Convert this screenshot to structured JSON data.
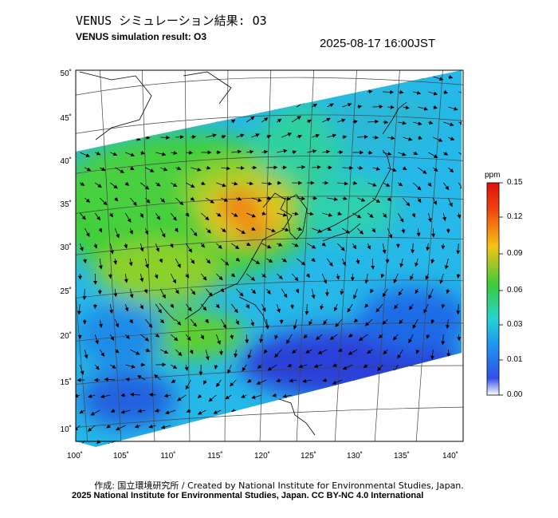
{
  "header": {
    "title_jp": "VENUS シミュレーション結果: O3",
    "title_en": "VENUS simulation result: O3",
    "timestamp": "2025-08-17 16:00JST"
  },
  "map": {
    "lat_labels": [
      "50˚",
      "45˚",
      "40˚",
      "35˚",
      "30˚",
      "25˚",
      "20˚",
      "15˚",
      "10˚"
    ],
    "lon_labels": [
      "100˚",
      "105˚",
      "110˚",
      "115˚",
      "120˚",
      "125˚",
      "130˚",
      "135˚",
      "140˚"
    ],
    "features": [
      "coastline",
      "graticule",
      "wind-vectors",
      "o3-concentration-field"
    ]
  },
  "colorbar": {
    "unit": "ppm",
    "ticks": [
      "0.15",
      "0.12",
      "0.09",
      "0.06",
      "0.03",
      "0.01",
      "0.00"
    ],
    "colors": [
      "#ffffff",
      "#2f3fe0",
      "#1e9cf0",
      "#27d4d0",
      "#3ccb3a",
      "#f5c414",
      "#f04010",
      "#e0100a"
    ]
  },
  "credits": {
    "jp": "作成: 国立環境研究所 / Created by National Institute for Environmental Studies, Japan.",
    "en": "2025 National Institute for Environmental Studies, Japan. CC BY-NC 4.0 International"
  }
}
